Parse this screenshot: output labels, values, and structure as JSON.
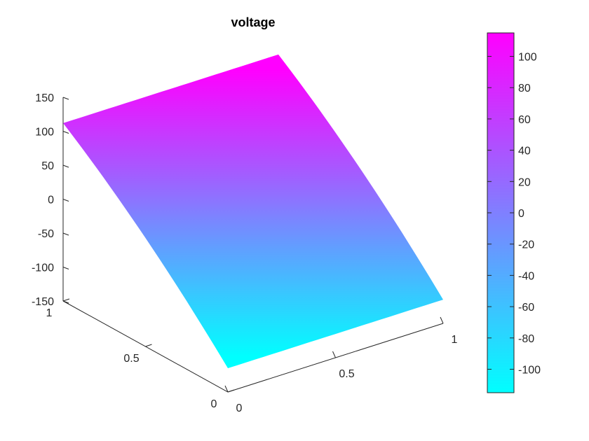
{
  "chart_data": {
    "type": "surface",
    "title": "voltage",
    "x_axis": {
      "ticks": [
        "0",
        "0.5",
        "1"
      ],
      "range": [
        0,
        1
      ]
    },
    "y_axis": {
      "ticks": [
        "0",
        "0.5",
        "1"
      ],
      "range": [
        0,
        1
      ]
    },
    "z_axis": {
      "ticks": [
        "-150",
        "-100",
        "-50",
        "0",
        "50",
        "100",
        "150"
      ],
      "range": [
        -150,
        150
      ]
    },
    "surface": {
      "description_values": [
        {
          "x": 0,
          "y": 1,
          "z": 112
        },
        {
          "x": 1,
          "y": 1,
          "z": 112
        },
        {
          "x": 0,
          "y": 0,
          "z": -115
        },
        {
          "x": 1,
          "y": 0,
          "z": -115
        }
      ]
    },
    "colorbar": {
      "ticks": [
        "100",
        "80",
        "60",
        "40",
        "20",
        "0",
        "-20",
        "-40",
        "-60",
        "-80",
        "-100"
      ],
      "range": [
        -115,
        115
      ],
      "colormap": "cool",
      "color_min": "#00ffff",
      "color_max": "#ff00ff"
    },
    "grid": false
  }
}
